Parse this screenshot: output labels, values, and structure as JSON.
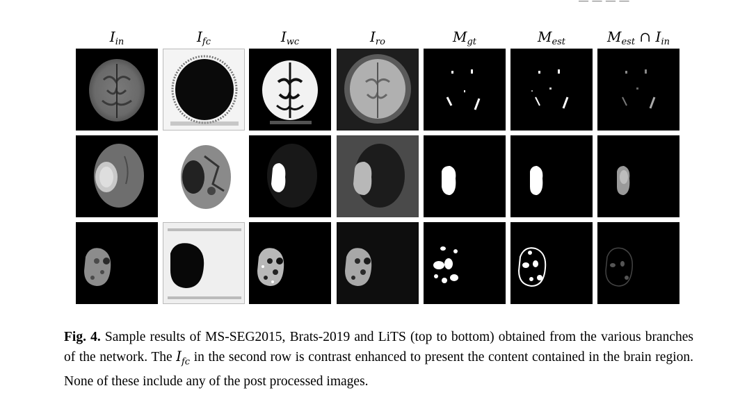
{
  "column_headers": [
    {
      "base": "I",
      "sub": "in",
      "extra": ""
    },
    {
      "base": "I",
      "sub": "fc",
      "extra": ""
    },
    {
      "base": "I",
      "sub": "wc",
      "extra": ""
    },
    {
      "base": "I",
      "sub": "ro",
      "extra": ""
    },
    {
      "base": "M",
      "sub": "gt",
      "extra": ""
    },
    {
      "base": "M",
      "sub": "est",
      "extra": ""
    },
    {
      "base": "M",
      "sub": "est",
      "extra": " ∩ I",
      "extra_sub": "in"
    }
  ],
  "caption": {
    "label": "Fig. 4.",
    "text_1": " Sample results of MS-SEG2015, Brats-2019 and LiTS (top to bottom) obtained from the various branches of the network. The ",
    "math_base": "I",
    "math_sub": "fc",
    "text_2": " in the second row is contrast enhanced to present the content contained in the brain region. None of these include any of the post processed images."
  }
}
